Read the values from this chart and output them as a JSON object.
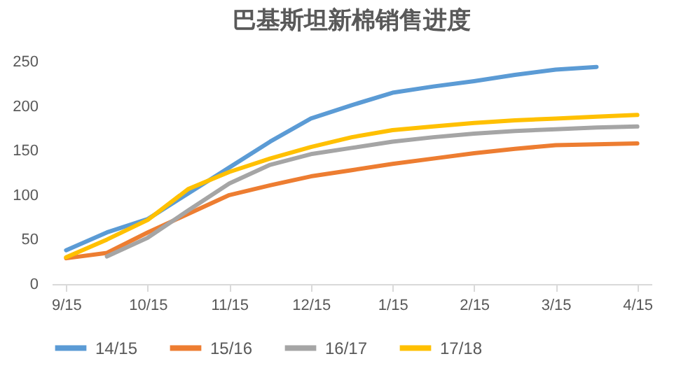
{
  "chart_data": {
    "type": "line",
    "title": "巴基斯坦新棉销售进度",
    "categories": [
      "9/15",
      null,
      "10/15",
      null,
      "11/15",
      null,
      "12/15",
      null,
      "1/15",
      null,
      "2/15",
      null,
      "3/15",
      null,
      "4/15"
    ],
    "ylim": [
      0,
      250
    ],
    "yticks": [
      0,
      50,
      100,
      150,
      200,
      250
    ],
    "grid": false,
    "legend": "bottom",
    "marker": "none",
    "line_style": "solid",
    "series": [
      {
        "name": "14/15",
        "color": "#5b9bd5",
        "values": [
          38,
          58,
          73,
          102,
          131,
          160,
          186,
          201,
          215,
          222,
          228,
          235,
          241,
          244,
          null
        ]
      },
      {
        "name": "15/16",
        "color": "#ed7d31",
        "values": [
          29,
          35,
          58,
          79,
          100,
          111,
          121,
          128,
          135,
          141,
          147,
          152,
          156,
          157,
          158
        ]
      },
      {
        "name": "16/17",
        "color": "#a5a5a5",
        "values": [
          null,
          31,
          52,
          83,
          113,
          134,
          146,
          153,
          160,
          165,
          169,
          172,
          174,
          176,
          177
        ]
      },
      {
        "name": "17/18",
        "color": "#ffc000",
        "values": [
          30,
          50,
          72,
          107,
          126,
          141,
          154,
          165,
          173,
          177,
          181,
          184,
          186,
          188,
          190
        ]
      }
    ]
  }
}
